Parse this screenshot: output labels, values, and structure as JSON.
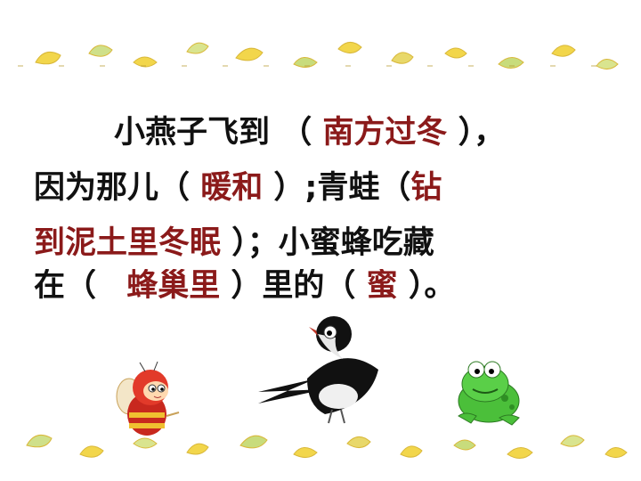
{
  "passage": {
    "line1": {
      "lead": "小燕子飞到",
      "open": "（",
      "answer": "南方过冬",
      "close": "），"
    },
    "line2": {
      "lead": "因为那儿（",
      "answer": "暖和",
      "mid": "）;青蛙（",
      "answer_start": "钻"
    },
    "line3": {
      "answer_cont": "到泥土里冬眠",
      "mid": "）；小蜜蜂吃藏"
    },
    "line4": {
      "lead": "在（",
      "answer1": "蜂巢里",
      "mid": "）里的（",
      "answer2": "蜜",
      "close": "）。"
    }
  },
  "decorations": {
    "border_motif": "ginkgo-leaf",
    "characters": [
      "bee",
      "swallow",
      "frog"
    ]
  },
  "colors": {
    "text": "#111111",
    "answer": "#8b1a1a",
    "leaf_yellow": "#f2d64b",
    "leaf_green": "#9bc46a"
  }
}
